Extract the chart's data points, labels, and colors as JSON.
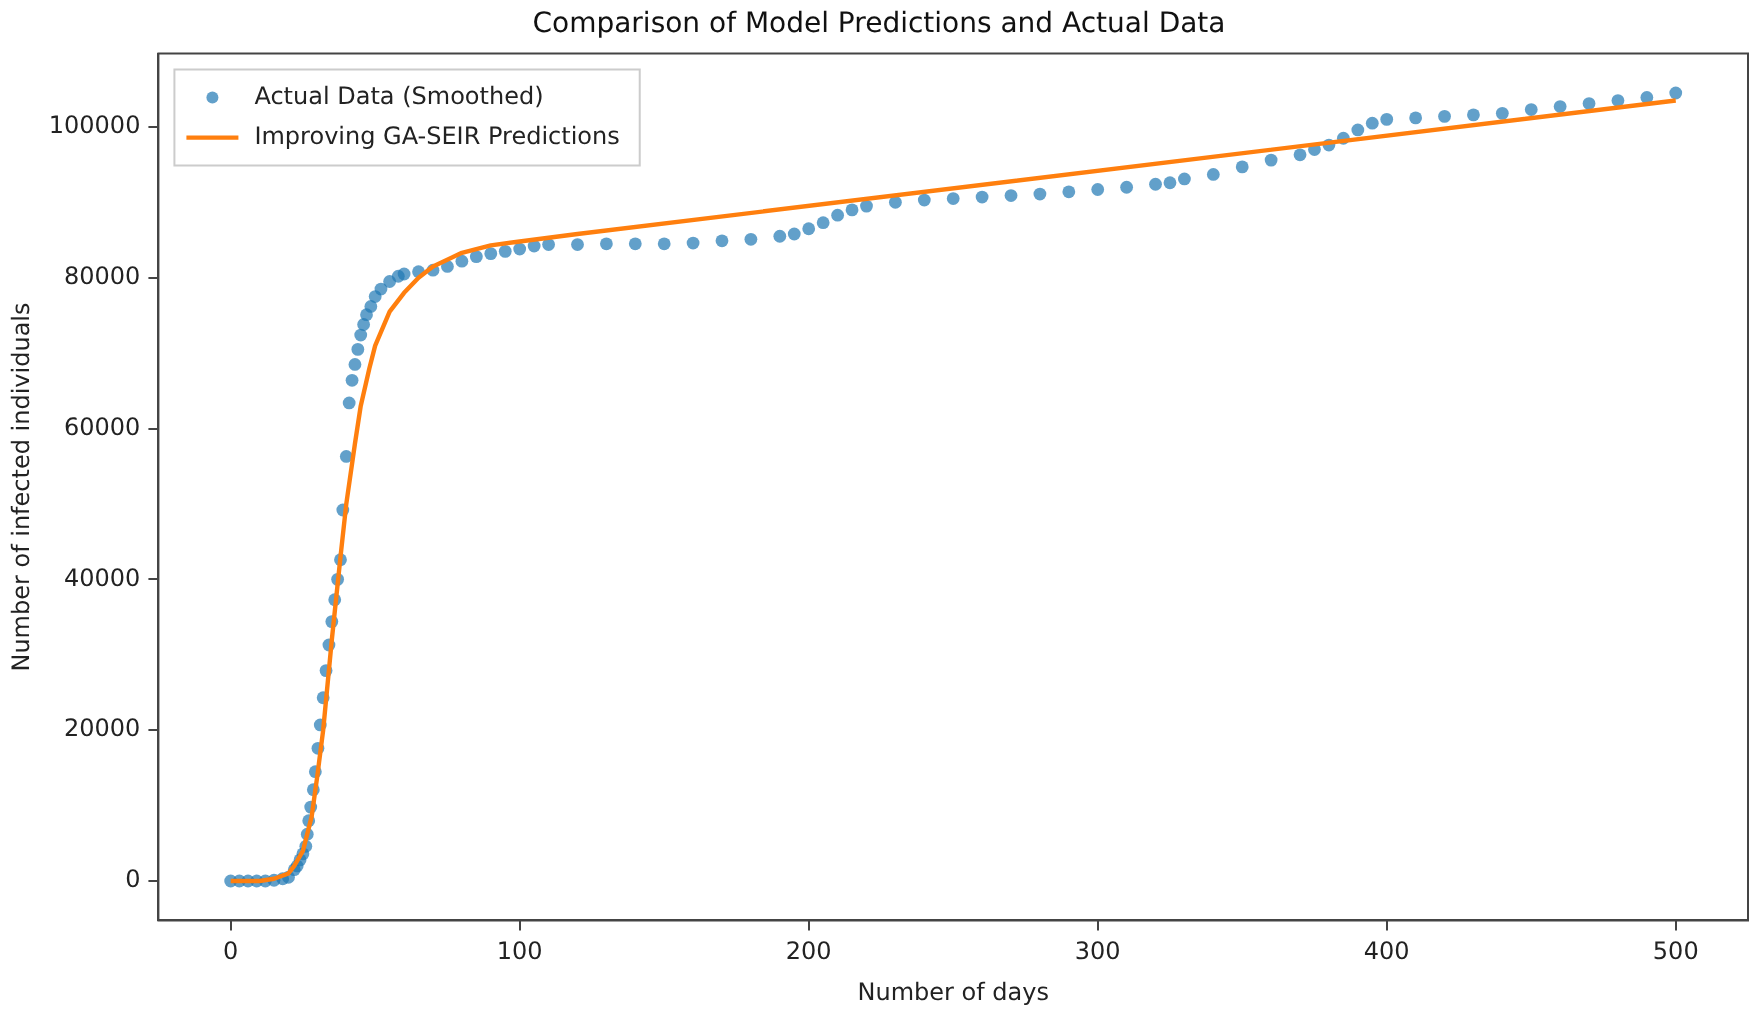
{
  "chart_data": {
    "type": "scatter",
    "title": "Comparison of Model Predictions and Actual Data",
    "xlabel": "Number of days",
    "ylabel": "Number of infected individuals",
    "xlim": [
      -25,
      525
    ],
    "xticks": [
      0,
      100,
      200,
      300,
      400,
      500
    ],
    "ylim": [
      -5225,
      109725
    ],
    "yticks": [
      0,
      20000,
      40000,
      60000,
      80000,
      100000
    ],
    "grid": false,
    "legend": "top left",
    "series": [
      {
        "name": "Actual Data (Smoothed)",
        "marker": "circle",
        "color": "#1f77b4",
        "x": [
          0,
          3,
          6,
          9,
          12,
          15,
          18,
          20,
          22,
          23,
          24,
          25,
          26,
          26.5,
          27,
          27.7,
          28.6,
          29.3,
          30.2,
          31,
          32,
          33,
          34,
          35,
          36,
          37,
          38,
          38.8,
          40,
          41,
          42,
          43,
          44,
          45,
          46,
          47,
          48.5,
          50,
          52,
          55,
          58,
          60,
          65,
          70,
          75,
          80,
          85,
          90,
          95,
          100,
          105,
          110,
          120,
          130,
          140,
          150,
          160,
          170,
          180,
          190,
          195,
          200,
          205,
          210,
          215,
          220,
          230,
          240,
          250,
          260,
          270,
          280,
          290,
          300,
          310,
          320,
          325,
          330,
          340,
          350,
          360,
          370,
          375,
          380,
          385,
          390,
          395,
          400,
          410,
          420,
          430,
          440,
          450,
          460,
          470,
          480,
          490,
          500
        ],
        "values": [
          0,
          0,
          0,
          0,
          0,
          100,
          300,
          500,
          1500,
          2000,
          2800,
          3600,
          4600,
          6200,
          8000,
          9800,
          12100,
          14500,
          17600,
          20700,
          24300,
          27900,
          31300,
          34400,
          37300,
          40000,
          42600,
          49200,
          56300,
          63400,
          66400,
          68500,
          70500,
          72400,
          73800,
          75100,
          76200,
          77500,
          78500,
          79500,
          80200,
          80500,
          80800,
          81000,
          81500,
          82200,
          82800,
          83200,
          83500,
          83800,
          84200,
          84400,
          84400,
          84500,
          84500,
          84500,
          84600,
          84900,
          85100,
          85500,
          85800,
          86500,
          87300,
          88300,
          89000,
          89500,
          90000,
          90300,
          90500,
          90700,
          90900,
          91100,
          91400,
          91700,
          92000,
          92400,
          92600,
          93100,
          93700,
          94700,
          95600,
          96300,
          97000,
          97600,
          98500,
          99600,
          100500,
          101000,
          101200,
          101400,
          101600,
          101800,
          102300,
          102700,
          103100,
          103500,
          103900,
          104500
        ]
      },
      {
        "name": "Improving GA-SEIR Predictions",
        "type": "line",
        "marker": "none",
        "color": "#ff7f0e",
        "line_style": "solid",
        "x": [
          0,
          10,
          15,
          20,
          22,
          25,
          28,
          30,
          32,
          35,
          38,
          40,
          43,
          45,
          48,
          50,
          55,
          60,
          65,
          70,
          80,
          90,
          100,
          120,
          500
        ],
        "values": [
          0,
          0,
          300,
          1000,
          2000,
          4000,
          8500,
          14000,
          20000,
          32000,
          43000,
          50000,
          58000,
          63000,
          68000,
          71000,
          75500,
          78000,
          80000,
          81500,
          83300,
          84300,
          84800,
          85800,
          103500
        ]
      }
    ]
  }
}
